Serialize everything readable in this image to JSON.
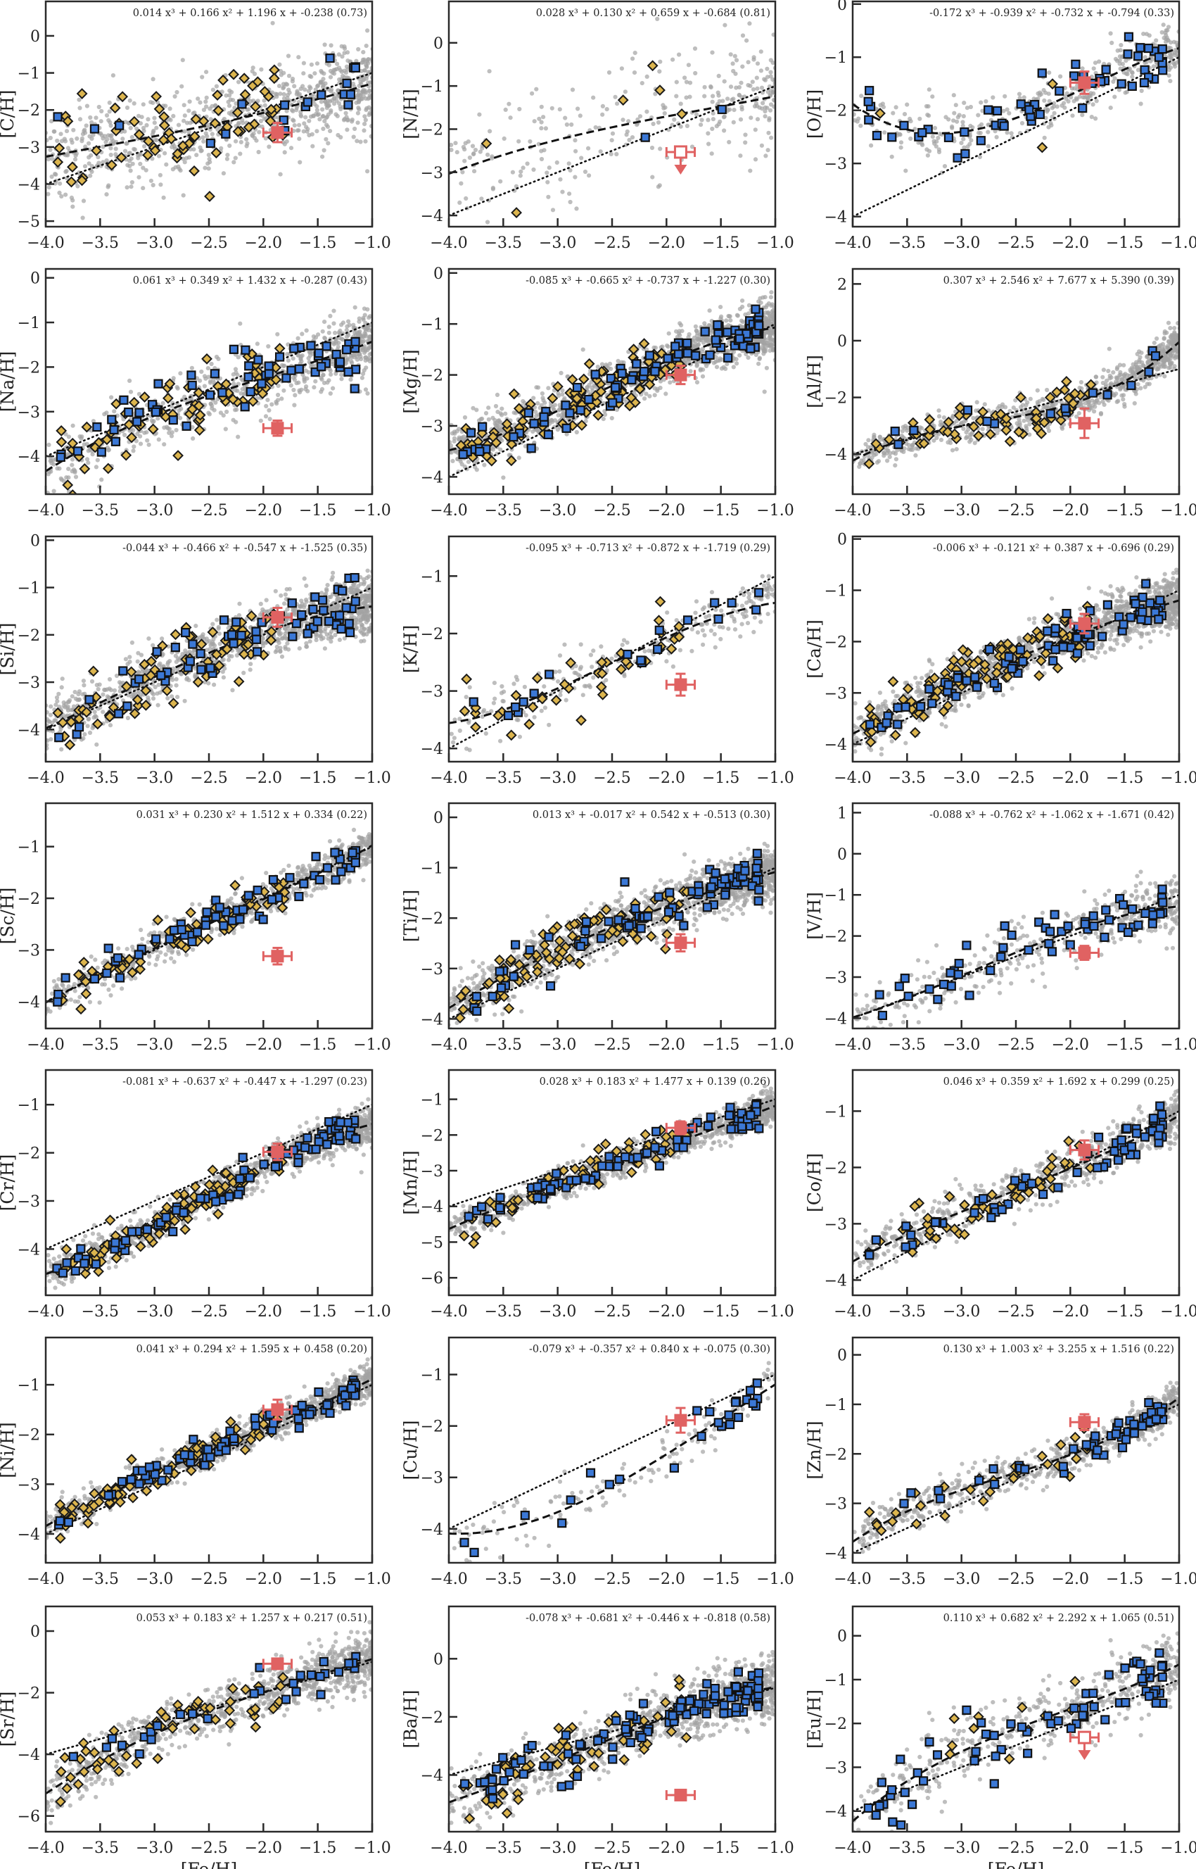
{
  "chart_data": [
    {
      "type": "scatter",
      "ylabel": "[C/H]",
      "xlabel": "",
      "xlim": [
        -4.0,
        -1.0
      ],
      "ylim": [
        -5.15,
        0.93
      ],
      "yticks": [
        0,
        -1,
        -2,
        -3,
        -4,
        -5
      ],
      "fit_label": "0.014 x³ + 0.166 x² + 1.196 x + -0.238 (0.73)",
      "fit_coeffs": [
        0.014,
        0.166,
        1.196,
        -0.238
      ],
      "fit_scatter": 0.73,
      "highlight": {
        "x": -1.87,
        "y": -2.61,
        "xerr": 0.13,
        "yerr": 0.26,
        "upper_limit": false
      }
    },
    {
      "type": "scatter",
      "ylabel": "[N/H]",
      "xlabel": "",
      "xlim": [
        -4.0,
        -1.0
      ],
      "ylim": [
        -4.26,
        0.96
      ],
      "yticks": [
        0,
        -1,
        -2,
        -3,
        -4
      ],
      "fit_label": "0.028 x³ + 0.130 x² + 0.659 x + -0.684 (0.81)",
      "fit_coeffs": [
        0.028,
        0.13,
        0.659,
        -0.684
      ],
      "fit_scatter": 0.81,
      "highlight": {
        "x": -1.87,
        "y": -2.53,
        "xerr": 0.13,
        "yerr": 0,
        "upper_limit": true
      }
    },
    {
      "type": "scatter",
      "ylabel": "[O/H]",
      "xlabel": "",
      "xlim": [
        -4.0,
        -1.0
      ],
      "ylim": [
        -4.19,
        0.05
      ],
      "yticks": [
        0,
        -1,
        -2,
        -3,
        -4
      ],
      "fit_label": "-0.172 x³ + -0.939 x² + -0.732 x + -0.794 (0.33)",
      "fit_coeffs": [
        -0.172,
        -0.939,
        -0.732,
        -0.794
      ],
      "fit_scatter": 0.33,
      "highlight": {
        "x": -1.87,
        "y": -1.48,
        "xerr": 0.13,
        "yerr": 0.21,
        "upper_limit": false
      }
    },
    {
      "type": "scatter",
      "ylabel": "[Na/H]",
      "xlabel": "",
      "xlim": [
        -4.0,
        -1.0
      ],
      "ylim": [
        -4.85,
        0.2
      ],
      "yticks": [
        0,
        -1,
        -2,
        -3,
        -4
      ],
      "fit_label": "0.061 x³ + 0.349 x² + 1.432 x + -0.287 (0.43)",
      "fit_coeffs": [
        0.061,
        0.349,
        1.432,
        -0.287
      ],
      "fit_scatter": 0.43,
      "highlight": {
        "x": -1.87,
        "y": -3.37,
        "xerr": 0.13,
        "yerr": 0.17,
        "upper_limit": false
      }
    },
    {
      "type": "scatter",
      "ylabel": "[Mg/H]",
      "xlabel": "",
      "xlim": [
        -4.0,
        -1.0
      ],
      "ylim": [
        -4.34,
        0.08
      ],
      "yticks": [
        0,
        -1,
        -2,
        -3,
        -4
      ],
      "fit_label": "-0.085 x³ + -0.665 x² + -0.737 x + -1.227 (0.30)",
      "fit_coeffs": [
        -0.085,
        -0.665,
        -0.737,
        -1.227
      ],
      "fit_scatter": 0.3,
      "highlight": {
        "x": -1.87,
        "y": -2.0,
        "xerr": 0.13,
        "yerr": 0.18,
        "upper_limit": false
      }
    },
    {
      "type": "scatter",
      "ylabel": "[Al/H]",
      "xlabel": "",
      "xlim": [
        -4.0,
        -1.0
      ],
      "ylim": [
        -5.41,
        2.53
      ],
      "yticks": [
        2,
        0,
        -2,
        -4
      ],
      "fit_label": "0.307 x³ + 2.546 x² + 7.677 x + 5.390 (0.39)",
      "fit_coeffs": [
        0.307,
        2.546,
        7.677,
        5.39
      ],
      "fit_scatter": 0.39,
      "highlight": {
        "x": -1.87,
        "y": -2.91,
        "xerr": 0.13,
        "yerr": 0.52,
        "upper_limit": false
      }
    },
    {
      "type": "scatter",
      "ylabel": "[Si/H]",
      "xlabel": "",
      "xlim": [
        -4.0,
        -1.0
      ],
      "ylim": [
        -4.68,
        0.08
      ],
      "yticks": [
        0,
        -1,
        -2,
        -3,
        -4
      ],
      "fit_label": "-0.044 x³ + -0.466 x² + -0.547 x + -1.525 (0.35)",
      "fit_coeffs": [
        -0.044,
        -0.466,
        -0.547,
        -1.525
      ],
      "fit_scatter": 0.35,
      "highlight": {
        "x": -1.87,
        "y": -1.63,
        "xerr": 0.13,
        "yerr": 0.2,
        "upper_limit": false
      }
    },
    {
      "type": "scatter",
      "ylabel": "[K/H]",
      "xlabel": "",
      "xlim": [
        -4.0,
        -1.0
      ],
      "ylim": [
        -4.23,
        -0.31
      ],
      "yticks": [
        -1,
        -2,
        -3,
        -4
      ],
      "fit_label": "-0.095 x³ + -0.713 x² + -0.872 x + -1.719 (0.29)",
      "fit_coeffs": [
        -0.095,
        -0.713,
        -0.872,
        -1.719
      ],
      "fit_scatter": 0.29,
      "highlight": {
        "x": -1.87,
        "y": -2.89,
        "xerr": 0.13,
        "yerr": 0.19,
        "upper_limit": false
      }
    },
    {
      "type": "scatter",
      "ylabel": "[Ca/H]",
      "xlabel": "",
      "xlim": [
        -4.0,
        -1.0
      ],
      "ylim": [
        -4.34,
        0.05
      ],
      "yticks": [
        0,
        -1,
        -2,
        -3,
        -4
      ],
      "fit_label": "-0.006 x³ + -0.121 x² + 0.387 x + -0.696 (0.29)",
      "fit_coeffs": [
        -0.006,
        -0.121,
        0.387,
        -0.696
      ],
      "fit_scatter": 0.29,
      "highlight": {
        "x": -1.87,
        "y": -1.65,
        "xerr": 0.13,
        "yerr": 0.19,
        "upper_limit": false
      }
    },
    {
      "type": "scatter",
      "ylabel": "[Sc/H]",
      "xlabel": "",
      "xlim": [
        -4.0,
        -1.0
      ],
      "ylim": [
        -4.52,
        -0.16
      ],
      "yticks": [
        -1,
        -2,
        -3,
        -4
      ],
      "fit_label": "0.031 x³ + 0.230 x² + 1.512 x + 0.334 (0.22)",
      "fit_coeffs": [
        0.031,
        0.23,
        1.512,
        0.334
      ],
      "fit_scatter": 0.22,
      "highlight": {
        "x": -1.87,
        "y": -3.12,
        "xerr": 0.13,
        "yerr": 0.16,
        "upper_limit": false
      }
    },
    {
      "type": "scatter",
      "ylabel": "[Ti/H]",
      "xlabel": "",
      "xlim": [
        -4.0,
        -1.0
      ],
      "ylim": [
        -4.19,
        0.28
      ],
      "yticks": [
        0,
        -1,
        -2,
        -3,
        -4
      ],
      "fit_label": "0.013 x³ + -0.017 x² + 0.542 x + -0.513 (0.30)",
      "fit_coeffs": [
        0.013,
        -0.017,
        0.542,
        -0.513
      ],
      "fit_scatter": 0.3,
      "highlight": {
        "x": -1.87,
        "y": -2.49,
        "xerr": 0.13,
        "yerr": 0.17,
        "upper_limit": false
      }
    },
    {
      "type": "scatter",
      "ylabel": "[V/H]",
      "xlabel": "",
      "xlim": [
        -4.0,
        -1.0
      ],
      "ylim": [
        -4.25,
        1.23
      ],
      "yticks": [
        1,
        0,
        -1,
        -2,
        -3,
        -4
      ],
      "fit_label": "-0.088 x³ + -0.762 x² + -1.062 x + -1.671 (0.42)",
      "fit_coeffs": [
        -0.088,
        -0.762,
        -1.062,
        -1.671
      ],
      "fit_scatter": 0.42,
      "highlight": {
        "x": -1.87,
        "y": -2.41,
        "xerr": 0.13,
        "yerr": 0.17,
        "upper_limit": false
      }
    },
    {
      "type": "scatter",
      "ylabel": "[Cr/H]",
      "xlabel": "",
      "xlim": [
        -4.0,
        -1.0
      ],
      "ylim": [
        -4.96,
        -0.28
      ],
      "yticks": [
        -1,
        -2,
        -3,
        -4
      ],
      "fit_label": "-0.081 x³ + -0.637 x² + -0.447 x + -1.297 (0.23)",
      "fit_coeffs": [
        -0.081,
        -0.637,
        -0.447,
        -1.297
      ],
      "fit_scatter": 0.23,
      "highlight": {
        "x": -1.87,
        "y": -1.98,
        "xerr": 0.13,
        "yerr": 0.17,
        "upper_limit": false
      }
    },
    {
      "type": "scatter",
      "ylabel": "[Mn/H]",
      "xlabel": "",
      "xlim": [
        -4.0,
        -1.0
      ],
      "ylim": [
        -6.49,
        -0.18
      ],
      "yticks": [
        -1,
        -2,
        -3,
        -4,
        -5,
        -6
      ],
      "fit_label": "0.028 x³ + 0.183 x² + 1.477 x + 0.139 (0.26)",
      "fit_coeffs": [
        0.028,
        0.183,
        1.477,
        0.139
      ],
      "fit_scatter": 0.26,
      "highlight": {
        "x": -1.87,
        "y": -1.8,
        "xerr": 0.13,
        "yerr": 0.18,
        "upper_limit": false
      }
    },
    {
      "type": "scatter",
      "ylabel": "[Co/H]",
      "xlabel": "",
      "xlim": [
        -4.0,
        -1.0
      ],
      "ylim": [
        -4.27,
        -0.27
      ],
      "yticks": [
        -1,
        -2,
        -3,
        -4
      ],
      "fit_label": "0.046 x³ + 0.359 x² + 1.692 x + 0.299 (0.25)",
      "fit_coeffs": [
        0.046,
        0.359,
        1.692,
        0.299
      ],
      "fit_scatter": 0.25,
      "highlight": {
        "x": -1.87,
        "y": -1.69,
        "xerr": 0.13,
        "yerr": 0.17,
        "upper_limit": false
      }
    },
    {
      "type": "scatter",
      "ylabel": "[Ni/H]",
      "xlabel": "",
      "xlim": [
        -4.0,
        -1.0
      ],
      "ylim": [
        -4.58,
        -0.05
      ],
      "yticks": [
        -1,
        -2,
        -3,
        -4
      ],
      "fit_label": "0.041 x³ + 0.294 x² + 1.595 x + 0.458 (0.20)",
      "fit_coeffs": [
        0.041,
        0.294,
        1.595,
        0.458
      ],
      "fit_scatter": 0.2,
      "highlight": {
        "x": -1.87,
        "y": -1.5,
        "xerr": 0.13,
        "yerr": 0.2,
        "upper_limit": false
      }
    },
    {
      "type": "scatter",
      "ylabel": "[Cu/H]",
      "xlabel": "",
      "xlim": [
        -4.0,
        -1.0
      ],
      "ylim": [
        -4.66,
        -0.28
      ],
      "yticks": [
        -1,
        -2,
        -3,
        -4
      ],
      "fit_label": "-0.079 x³ + -0.357 x² + 0.840 x + -0.075 (0.30)",
      "fit_coeffs": [
        -0.079,
        -0.357,
        0.84,
        -0.075
      ],
      "fit_scatter": 0.3,
      "highlight": {
        "x": -1.87,
        "y": -1.89,
        "xerr": 0.13,
        "yerr": 0.24,
        "upper_limit": false
      }
    },
    {
      "type": "scatter",
      "ylabel": "[Zn/H]",
      "xlabel": "",
      "xlim": [
        -4.0,
        -1.0
      ],
      "ylim": [
        -4.2,
        0.35
      ],
      "yticks": [
        0,
        -1,
        -2,
        -3,
        -4
      ],
      "fit_label": "0.130 x³ + 1.003 x² + 3.255 x + 1.516 (0.22)",
      "fit_coeffs": [
        0.13,
        1.003,
        3.255,
        1.516
      ],
      "fit_scatter": 0.22,
      "highlight": {
        "x": -1.87,
        "y": -1.36,
        "xerr": 0.13,
        "yerr": 0.16,
        "upper_limit": false
      }
    },
    {
      "type": "scatter",
      "ylabel": "[Sr/H]",
      "xlabel": "[Fe/H]",
      "xlim": [
        -4.0,
        -1.0
      ],
      "ylim": [
        -6.51,
        0.8
      ],
      "yticks": [
        0,
        -2,
        -4,
        -6
      ],
      "fit_label": "0.053 x³ + 0.183 x² + 1.257 x + 0.217 (0.51)",
      "fit_coeffs": [
        0.053,
        0.183,
        1.257,
        0.217
      ],
      "fit_scatter": 0.51,
      "highlight": {
        "x": -1.87,
        "y": -1.06,
        "xerr": 0.13,
        "yerr": 0,
        "upper_limit": false
      }
    },
    {
      "type": "scatter",
      "ylabel": "[Ba/H]",
      "xlabel": "[Fe/H]",
      "xlim": [
        -4.0,
        -1.0
      ],
      "ylim": [
        -5.95,
        1.8
      ],
      "yticks": [
        0,
        -2,
        -4
      ],
      "fit_label": "-0.078 x³ + -0.681 x² + -0.446 x + -0.818 (0.58)",
      "fit_coeffs": [
        -0.078,
        -0.681,
        -0.446,
        -0.818
      ],
      "fit_scatter": 0.58,
      "highlight": {
        "x": -1.87,
        "y": -4.69,
        "xerr": 0.13,
        "yerr": 0,
        "upper_limit": false
      }
    },
    {
      "type": "scatter",
      "ylabel": "[Eu/H]",
      "xlabel": "[Fe/H]",
      "xlim": [
        -4.0,
        -1.0
      ],
      "ylim": [
        -4.47,
        0.67
      ],
      "yticks": [
        0,
        -1,
        -2,
        -3,
        -4
      ],
      "fit_label": "0.110 x³ + 0.682 x² + 2.292 x + 1.065 (0.51)",
      "fit_coeffs": [
        0.11,
        0.682,
        2.292,
        1.065
      ],
      "fit_scatter": 0.51,
      "highlight": {
        "x": -1.87,
        "y": -2.32,
        "xerr": 0.13,
        "yerr": 0,
        "upper_limit": true
      }
    }
  ],
  "shared": {
    "xticks": [
      -4.0,
      -3.5,
      -3.0,
      -2.5,
      -2.0,
      -1.5,
      -1.0
    ],
    "xtick_labels": [
      "−4.0",
      "−3.5",
      "−3.0",
      "−2.5",
      "−2.0",
      "−1.5",
      "−1.0"
    ],
    "reference_line": {
      "style": "dotted",
      "slope": 1,
      "intercept": 0
    },
    "fit_line_style": "dashed",
    "grid": false,
    "legend": "none",
    "colors": {
      "background_stars": "#a3a3a3",
      "blue_squares": "#3b78d6",
      "yellow_diamonds": "#dcb54e",
      "highlight": "#e06262",
      "lines": "#111111"
    }
  }
}
